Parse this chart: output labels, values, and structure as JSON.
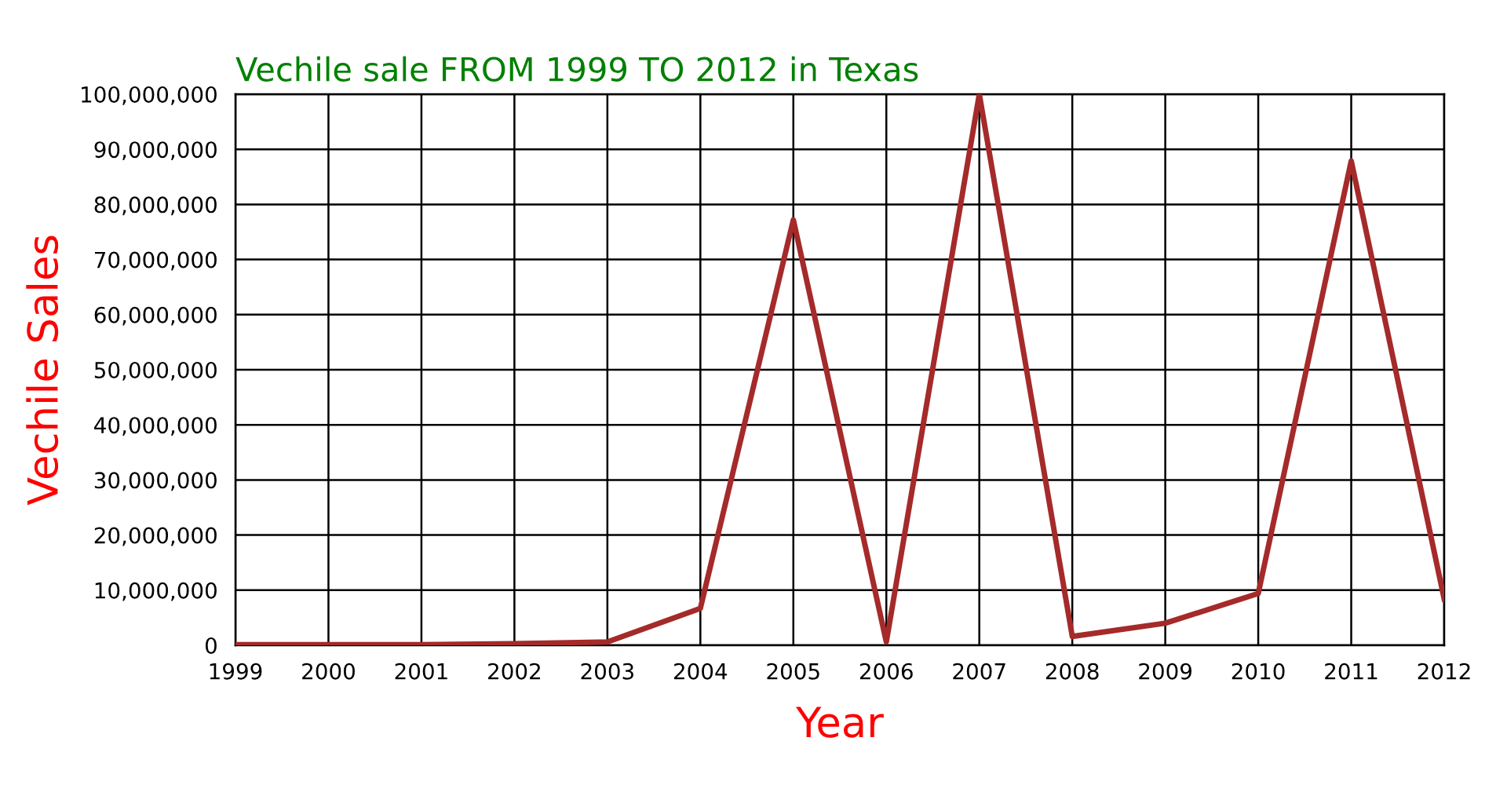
{
  "chart_data": {
    "type": "line",
    "title": "Vechile sale FROM 1999 TO 2012 in Texas",
    "xlabel": "Year",
    "ylabel": "Vechile Sales",
    "x": [
      1999,
      2000,
      2001,
      2002,
      2003,
      2004,
      2005,
      2006,
      2007,
      2008,
      2009,
      2010,
      2011,
      2012
    ],
    "series": [
      {
        "color": "#a52a2a",
        "values": [
          100000,
          100000,
          100000,
          300000,
          600000,
          6700000,
          77200000,
          600000,
          100000000,
          1600000,
          4000000,
          9400000,
          87900000,
          8400000
        ]
      }
    ],
    "xlim": [
      1999,
      2012
    ],
    "xticks": [
      1999,
      2000,
      2001,
      2002,
      2003,
      2004,
      2005,
      2006,
      2007,
      2008,
      2009,
      2010,
      2011,
      2012
    ],
    "ylim": [
      0,
      100000000
    ],
    "yticks": [
      {
        "value": 0,
        "label": "0"
      },
      {
        "value": 10000000,
        "label": "10,000,000"
      },
      {
        "value": 20000000,
        "label": "20,000,000"
      },
      {
        "value": 30000000,
        "label": "30,000,000"
      },
      {
        "value": 40000000,
        "label": "40,000,000"
      },
      {
        "value": 50000000,
        "label": "50,000,000"
      },
      {
        "value": 60000000,
        "label": "60,000,000"
      },
      {
        "value": 70000000,
        "label": "70,000,000"
      },
      {
        "value": 80000000,
        "label": "80,000,000"
      },
      {
        "value": 90000000,
        "label": "90,000,000"
      },
      {
        "value": 100000000,
        "label": "100,000,000"
      }
    ],
    "grid": true,
    "marker": "none",
    "line_style": "solid"
  }
}
